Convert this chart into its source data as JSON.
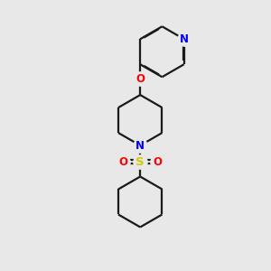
{
  "background_color": "#e8e8e8",
  "bond_color": "#1a1a1a",
  "N_color": "#0000ff",
  "O_color": "#ff0000",
  "S_color": "#cccc00",
  "line_width": 1.6,
  "figsize": [
    3.0,
    3.0
  ],
  "dpi": 100,
  "xlim": [
    0,
    10
  ],
  "ylim": [
    0,
    10
  ]
}
